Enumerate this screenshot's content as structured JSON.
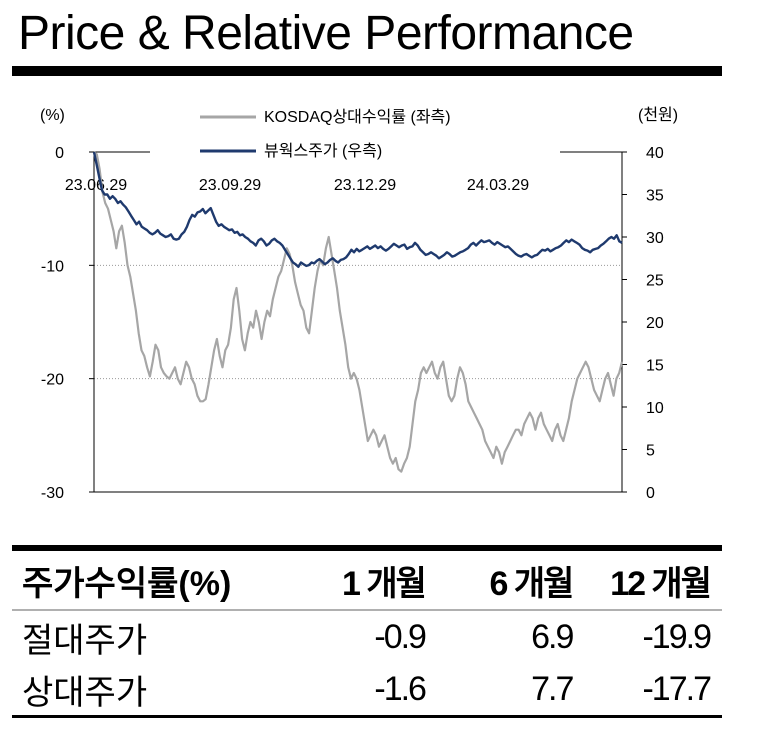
{
  "title": "Price & Relative Performance",
  "chart_data": {
    "type": "line",
    "left_axis": {
      "unit": "(%)",
      "range": [
        -30,
        0
      ],
      "ticks": [
        0,
        -10,
        -20,
        -30
      ]
    },
    "right_axis": {
      "unit": "(천원)",
      "range": [
        0,
        40
      ],
      "ticks": [
        40,
        35,
        30,
        25,
        20,
        15,
        10,
        5,
        0
      ]
    },
    "x_ticks": [
      "23.06.29",
      "23.09.29",
      "23.12.29",
      "24.03.29"
    ],
    "gridlines_y_left": [
      -10,
      -20
    ],
    "series": [
      {
        "name": "KOSDAQ상대수익률 (좌측)",
        "axis": "left",
        "color": "#a6a6a6",
        "values": [
          0.0,
          -0.2,
          -1.5,
          -3.5,
          -4.5,
          -5.0,
          -6.0,
          -7.0,
          -8.5,
          -7.0,
          -6.5,
          -8.0,
          -10.0,
          -11.0,
          -12.5,
          -14.0,
          -16.0,
          -17.5,
          -18.0,
          -19.0,
          -19.8,
          -18.5,
          -17.0,
          -17.5,
          -19.0,
          -19.5,
          -19.8,
          -20.0,
          -19.5,
          -19.0,
          -20.0,
          -20.5,
          -19.5,
          -18.5,
          -19.0,
          -20.0,
          -20.5,
          -21.5,
          -22.0,
          -22.0,
          -21.8,
          -20.5,
          -19.0,
          -17.5,
          -16.5,
          -18.0,
          -19.0,
          -17.5,
          -17.0,
          -15.5,
          -13.0,
          -12.0,
          -14.0,
          -16.5,
          -17.5,
          -16.0,
          -15.0,
          -15.5,
          -14.0,
          -15.0,
          -16.5,
          -15.0,
          -14.0,
          -14.5,
          -13.0,
          -12.0,
          -11.0,
          -10.5,
          -9.5,
          -8.5,
          -9.0,
          -10.0,
          -11.5,
          -12.5,
          -13.5,
          -14.0,
          -15.5,
          -16.0,
          -14.0,
          -12.0,
          -10.5,
          -9.5,
          -10.0,
          -8.5,
          -7.5,
          -9.0,
          -10.5,
          -12.0,
          -14.0,
          -15.5,
          -17.0,
          -19.0,
          -20.0,
          -19.5,
          -20.0,
          -21.0,
          -22.5,
          -24.0,
          -25.5,
          -25.0,
          -24.5,
          -25.0,
          -26.0,
          -25.5,
          -25.0,
          -26.0,
          -27.0,
          -27.5,
          -27.0,
          -28.0,
          -28.2,
          -27.5,
          -27.0,
          -26.0,
          -24.0,
          -22.0,
          -21.0,
          -19.5,
          -19.0,
          -19.5,
          -19.0,
          -18.5,
          -19.5,
          -20.0,
          -19.0,
          -18.5,
          -20.0,
          -21.5,
          -22.0,
          -21.5,
          -20.0,
          -19.0,
          -19.5,
          -20.5,
          -22.0,
          -22.5,
          -23.0,
          -23.5,
          -24.0,
          -24.5,
          -25.5,
          -26.0,
          -26.5,
          -27.0,
          -26.0,
          -26.5,
          -27.5,
          -26.5,
          -26.0,
          -25.5,
          -25.0,
          -24.5,
          -24.5,
          -25.0,
          -24.0,
          -23.5,
          -23.0,
          -23.5,
          -24.5,
          -23.5,
          -23.0,
          -24.0,
          -24.5,
          -25.0,
          -25.5,
          -24.5,
          -24.0,
          -25.0,
          -25.5,
          -24.5,
          -23.5,
          -22.0,
          -21.0,
          -20.0,
          -19.5,
          -19.0,
          -18.5,
          -19.0,
          -20.0,
          -21.0,
          -21.5,
          -22.0,
          -21.0,
          -20.0,
          -19.5,
          -20.5,
          -21.5,
          -20.0,
          -19.5,
          -18.5
        ]
      },
      {
        "name": "뷰웍스주가 (우측)",
        "axis": "right",
        "color": "#1f3a6e",
        "values": [
          40.0,
          38.5,
          37.0,
          35.5,
          35.0,
          35.0,
          34.5,
          34.8,
          34.5,
          34.0,
          34.2,
          33.8,
          33.5,
          33.0,
          32.5,
          32.0,
          31.5,
          31.8,
          31.2,
          31.0,
          30.8,
          30.5,
          30.3,
          30.5,
          30.8,
          30.4,
          30.2,
          30.0,
          30.1,
          30.3,
          29.8,
          29.7,
          29.8,
          30.3,
          30.6,
          31.2,
          32.0,
          32.6,
          32.4,
          32.9,
          33.0,
          33.3,
          32.8,
          33.1,
          33.4,
          32.6,
          31.8,
          31.3,
          31.5,
          31.2,
          31.0,
          30.8,
          30.9,
          30.5,
          30.6,
          30.2,
          30.3,
          30.0,
          29.8,
          29.5,
          29.3,
          29.0,
          29.6,
          29.8,
          29.5,
          29.0,
          29.2,
          29.6,
          29.8,
          29.5,
          29.3,
          29.0,
          28.5,
          28.0,
          27.5,
          27.0,
          26.8,
          26.5,
          27.0,
          26.8,
          26.6,
          26.7,
          27.0,
          26.9,
          27.2,
          27.4,
          27.1,
          26.8,
          27.0,
          27.3,
          27.5,
          27.2,
          27.0,
          27.3,
          27.4,
          27.6,
          28.0,
          28.5,
          28.2,
          28.6,
          28.3,
          28.5,
          28.7,
          28.9,
          28.6,
          28.8,
          29.0,
          28.7,
          28.9,
          28.6,
          28.4,
          28.6,
          28.9,
          29.2,
          29.0,
          28.8,
          29.0,
          29.1,
          28.6,
          28.8,
          28.9,
          29.3,
          29.0,
          28.5,
          28.2,
          27.9,
          28.0,
          28.2,
          28.0,
          27.8,
          27.5,
          27.7,
          27.9,
          28.2,
          28.0,
          27.7,
          27.8,
          28.0,
          28.2,
          28.3,
          28.5,
          28.7,
          29.1,
          29.3,
          29.0,
          29.3,
          29.6,
          29.4,
          29.5,
          29.6,
          29.3,
          29.1,
          29.4,
          29.2,
          29.0,
          28.8,
          28.9,
          28.6,
          28.3,
          28.0,
          27.8,
          27.7,
          27.9,
          28.0,
          27.8,
          27.6,
          27.8,
          27.9,
          28.2,
          28.5,
          28.4,
          28.6,
          28.3,
          28.5,
          28.7,
          28.8,
          29.0,
          29.3,
          29.6,
          29.4,
          29.7,
          29.5,
          29.3,
          29.1,
          28.7,
          28.5,
          28.4,
          28.2,
          28.5,
          28.6,
          28.7,
          29.0,
          29.2,
          29.5,
          29.8,
          30.0,
          29.8,
          30.2,
          29.5,
          29.3
        ]
      }
    ]
  },
  "table": {
    "headers": [
      "주가수익률(%)",
      "1 개월",
      "6 개월",
      "12 개월"
    ],
    "rows": [
      {
        "label": "절대주가",
        "values": [
          "-0.9",
          "6.9",
          "-19.9"
        ]
      },
      {
        "label": "상대주가",
        "values": [
          "-1.6",
          "7.7",
          "-17.7"
        ]
      }
    ]
  }
}
